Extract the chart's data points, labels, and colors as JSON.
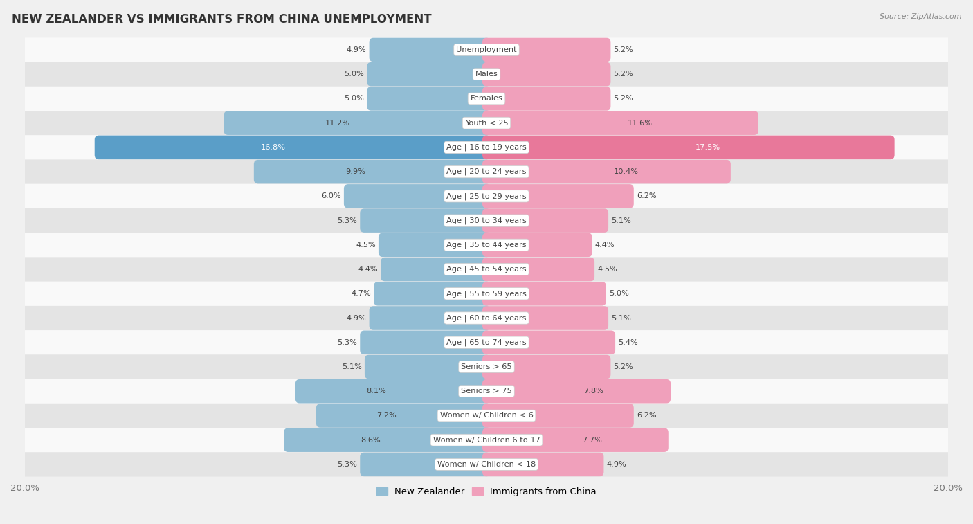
{
  "title": "NEW ZEALANDER VS IMMIGRANTS FROM CHINA UNEMPLOYMENT",
  "source": "Source: ZipAtlas.com",
  "categories": [
    "Unemployment",
    "Males",
    "Females",
    "Youth < 25",
    "Age | 16 to 19 years",
    "Age | 20 to 24 years",
    "Age | 25 to 29 years",
    "Age | 30 to 34 years",
    "Age | 35 to 44 years",
    "Age | 45 to 54 years",
    "Age | 55 to 59 years",
    "Age | 60 to 64 years",
    "Age | 65 to 74 years",
    "Seniors > 65",
    "Seniors > 75",
    "Women w/ Children < 6",
    "Women w/ Children 6 to 17",
    "Women w/ Children < 18"
  ],
  "nz_values": [
    4.9,
    5.0,
    5.0,
    11.2,
    16.8,
    9.9,
    6.0,
    5.3,
    4.5,
    4.4,
    4.7,
    4.9,
    5.3,
    5.1,
    8.1,
    7.2,
    8.6,
    5.3
  ],
  "china_values": [
    5.2,
    5.2,
    5.2,
    11.6,
    17.5,
    10.4,
    6.2,
    5.1,
    4.4,
    4.5,
    5.0,
    5.1,
    5.4,
    5.2,
    7.8,
    6.2,
    7.7,
    4.9
  ],
  "nz_color": "#92bdd4",
  "china_color": "#f0a0bb",
  "nz_highlight_color": "#5a9ec8",
  "china_highlight_color": "#e8789a",
  "highlight_rows": [
    4
  ],
  "xlim": 20.0,
  "legend_nz": "New Zealander",
  "legend_china": "Immigrants from China",
  "bg_color": "#f0f0f0",
  "row_bg_white": "#f9f9f9",
  "row_bg_gray": "#e4e4e4",
  "label_bubble_color": "#ffffff",
  "label_text_color": "#444444",
  "value_text_color": "#444444",
  "axis_text_color": "#777777",
  "title_color": "#333333"
}
